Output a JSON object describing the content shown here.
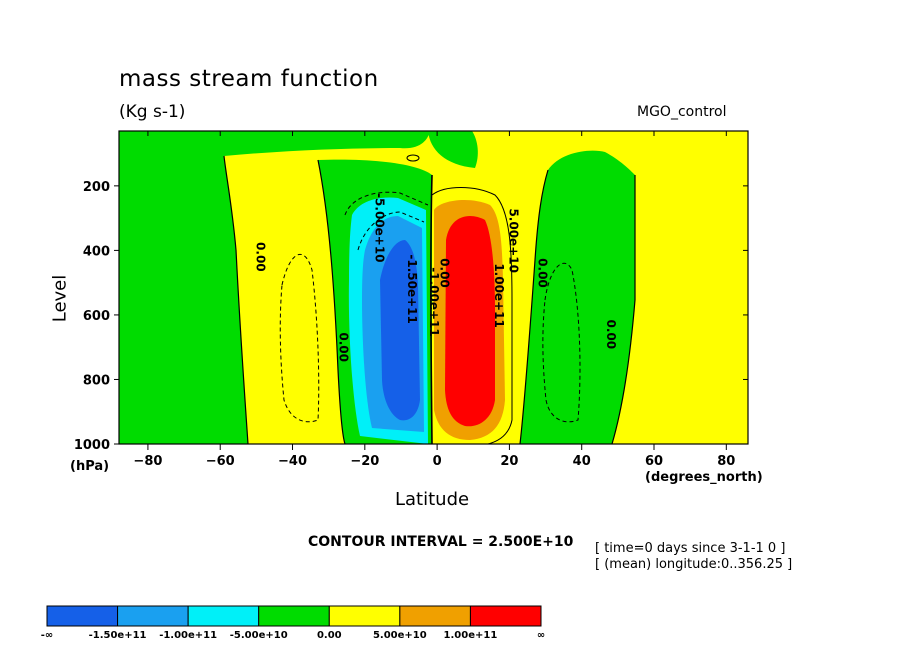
{
  "chart_data": {
    "type": "contour",
    "title": "mass stream function",
    "units": "(Kg s-1)",
    "run_label": "MGO_control",
    "xlabel": "Latitude",
    "xunit": "(degrees_north)",
    "ylabel": "Level",
    "yunit": "(hPa)",
    "xlim": [
      -88,
      86
    ],
    "ylim": [
      1000,
      30
    ],
    "y_reversed": true,
    "xticks": [
      -80,
      -60,
      -40,
      -20,
      0,
      20,
      40,
      60,
      80
    ],
    "yticks": [
      200,
      400,
      600,
      800,
      1000
    ],
    "contour_interval": "CONTOUR INTERVAL = 2.500E+10",
    "metadata": [
      "[ time=0 days since 3-1-1 0 ]",
      "[ (mean) longitude:0..356.25 ]"
    ],
    "contour_labels": [
      {
        "text": "0.00",
        "lat": -50,
        "lev": 420
      },
      {
        "text": "0.00",
        "lat": -27,
        "lev": 700
      },
      {
        "text": "-5.00e+10",
        "lat": -17,
        "lev": 330
      },
      {
        "text": "-1.50e+11",
        "lat": -8,
        "lev": 520
      },
      {
        "text": "-1.00e+11",
        "lat": -2,
        "lev": 560
      },
      {
        "text": "0.00",
        "lat": 1,
        "lev": 470
      },
      {
        "text": "5.00e+10",
        "lat": 20,
        "lev": 370
      },
      {
        "text": "1.00e+11",
        "lat": 16,
        "lev": 540
      },
      {
        "text": "0.00",
        "lat": 28,
        "lev": 470
      },
      {
        "text": "0.00",
        "lat": 47,
        "lev": 660
      }
    ],
    "legend": {
      "colors": [
        "#1560e8",
        "#1aa0f0",
        "#00f0f8",
        "#00dc00",
        "#ffff00",
        "#f0a000",
        "#ff0000"
      ],
      "labels": [
        "-∞",
        "-1.50e+11",
        "-1.00e+11",
        "-5.00e+10",
        "0.00",
        "5.00e+10",
        "1.00e+11",
        "∞"
      ]
    }
  }
}
